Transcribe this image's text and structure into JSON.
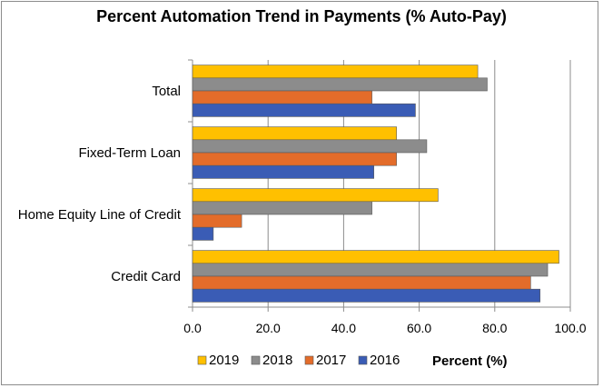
{
  "chart_data": {
    "type": "bar",
    "orientation": "horizontal",
    "title": "Percent Automation Trend in Payments (% Auto-Pay)",
    "xlabel": "Percent (%)",
    "ylabel": "",
    "categories": [
      "Total",
      "Fixed-Term Loan",
      "Home Equity Line of Credit",
      "Credit Card"
    ],
    "series": [
      {
        "name": "2019",
        "color": "#ffc000",
        "values": [
          75.5,
          54,
          65,
          97
        ]
      },
      {
        "name": "2018",
        "color": "#8c8c8c",
        "values": [
          78,
          62,
          47.5,
          94
        ]
      },
      {
        "name": "2017",
        "color": "#e36c2a",
        "values": [
          47.5,
          54,
          13,
          89.5
        ]
      },
      {
        "name": "2016",
        "color": "#3a5cb5",
        "values": [
          59,
          48,
          5.5,
          92
        ]
      }
    ],
    "xlim": [
      0,
      100
    ],
    "xticks": [
      "0.0",
      "20.0",
      "40.0",
      "60.0",
      "80.0",
      "100.0"
    ],
    "grid": true,
    "legend_position": "bottom"
  }
}
